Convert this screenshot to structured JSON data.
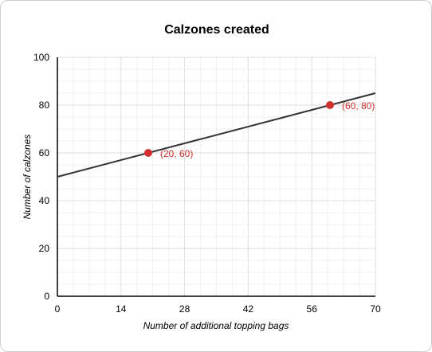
{
  "chart_data": {
    "type": "line",
    "title": "Calzones created",
    "xlabel": "Number of additional topping bags",
    "ylabel": "Number of calzones",
    "xlim": [
      0,
      70
    ],
    "ylim": [
      0,
      100
    ],
    "x_ticks": [
      0,
      14,
      28,
      42,
      56,
      70
    ],
    "y_ticks": [
      0,
      20,
      40,
      60,
      80,
      100
    ],
    "x_tick_labels": [
      "0",
      "14",
      "28",
      "42",
      "56",
      "70"
    ],
    "y_tick_labels": [
      "0",
      "20",
      "40",
      "60",
      "80",
      "100"
    ],
    "grid": true,
    "series": [
      {
        "x": [
          0,
          70
        ],
        "y": [
          50,
          85
        ],
        "color": "#333333"
      }
    ],
    "points": [
      {
        "x": 20,
        "y": 60,
        "label": "(20, 60)",
        "color": "#d32f2f"
      },
      {
        "x": 60,
        "y": 80,
        "label": "(60, 80)",
        "color": "#d32f2f"
      }
    ]
  }
}
